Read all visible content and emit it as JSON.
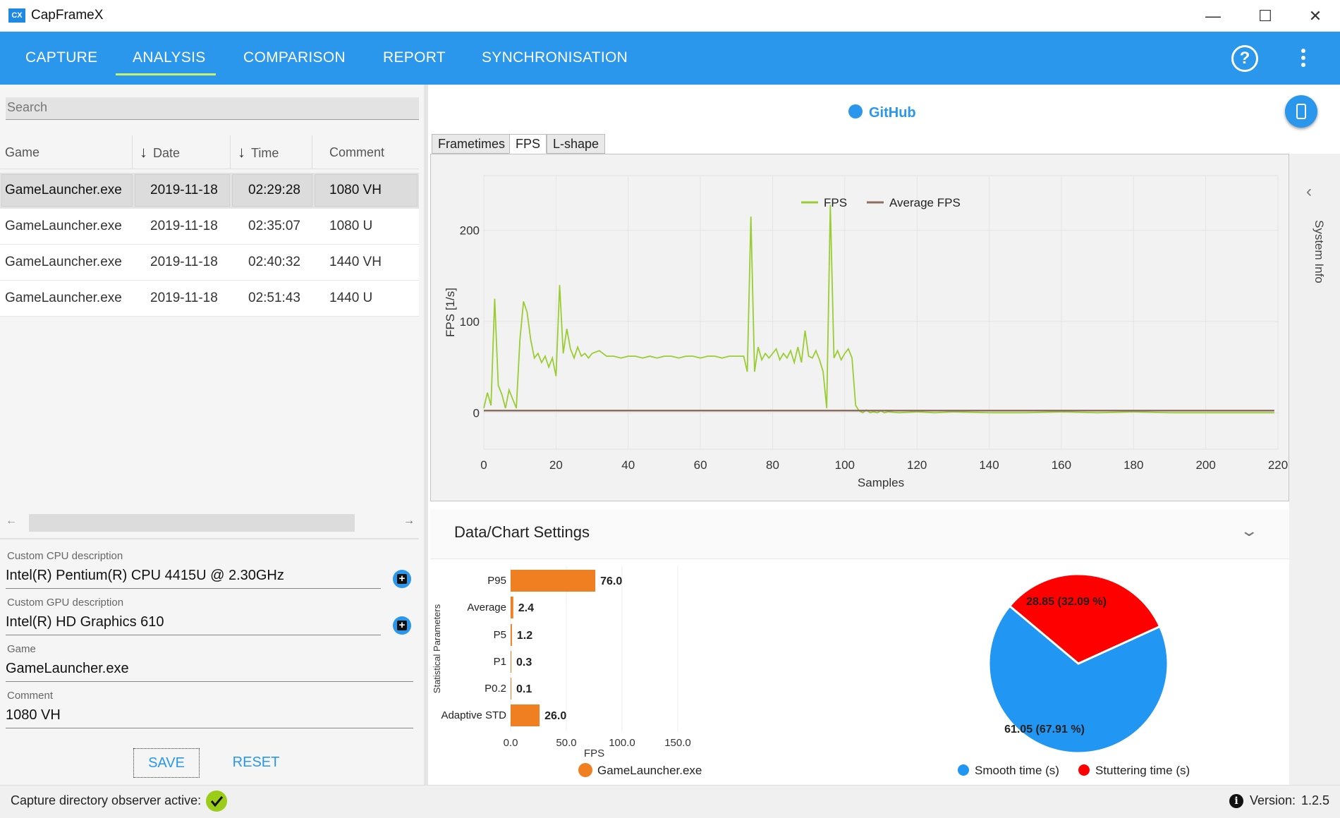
{
  "window": {
    "title": "CapFrameX",
    "logo_text": "CX"
  },
  "nav": {
    "tabs": [
      {
        "label": "CAPTURE"
      },
      {
        "label": "ANALYSIS"
      },
      {
        "label": "COMPARISON"
      },
      {
        "label": "REPORT"
      },
      {
        "label": "SYNCHRONISATION"
      }
    ],
    "active_tab": "ANALYSIS",
    "help_glyph": "?"
  },
  "search": {
    "placeholder": "Search"
  },
  "table": {
    "columns": [
      "Game",
      "Date",
      "Time",
      "Comment"
    ],
    "rows": [
      {
        "game": "GameLauncher.exe",
        "date": "2019-11-18",
        "time": "02:29:28",
        "comment": "1080 VH"
      },
      {
        "game": "GameLauncher.exe",
        "date": "2019-11-18",
        "time": "02:35:07",
        "comment": "1080 U"
      },
      {
        "game": "GameLauncher.exe",
        "date": "2019-11-18",
        "time": "02:40:32",
        "comment": "1440 VH"
      },
      {
        "game": "GameLauncher.exe",
        "date": "2019-11-18",
        "time": "02:51:43",
        "comment": "1440 U"
      }
    ],
    "selected_row": 0
  },
  "fields": {
    "cpu_label": "Custom CPU description",
    "cpu_value": "Intel(R) Pentium(R) CPU 4415U @ 2.30GHz",
    "gpu_label": "Custom GPU description",
    "gpu_value": "Intel(R) HD Graphics 610",
    "game_label": "Game",
    "game_value": "GameLauncher.exe",
    "comment_label": "Comment",
    "comment_value": "1080 VH"
  },
  "buttons": {
    "save": "SAVE",
    "reset": "RESET"
  },
  "github": {
    "label": "GitHub"
  },
  "chart_tabs": [
    "Frametimes",
    "FPS",
    "L-shape"
  ],
  "active_chart_tab": "FPS",
  "system_info": {
    "label": "System Info"
  },
  "settings": {
    "title": "Data/Chart Settings"
  },
  "status": {
    "observer_text": "Capture directory observer active:",
    "version_label": "Version:",
    "version_value": "1.2.5"
  },
  "colors": {
    "accent": "#2a96ec",
    "fps_line": "#9acd32",
    "avg_line": "#8d6e63",
    "bar": "#f07f22",
    "smooth": "#2196f3",
    "stutter": "#ff0000",
    "check": "#9ccc1a"
  },
  "chart_data": [
    {
      "type": "line",
      "xlabel": "Samples",
      "ylabel": "FPS [1/s]",
      "xlim": [
        0,
        220
      ],
      "ylim": [
        -40,
        260
      ],
      "xticks": [
        0,
        20,
        40,
        60,
        80,
        100,
        120,
        140,
        160,
        180,
        200,
        220
      ],
      "yticks": [
        0,
        100,
        200
      ],
      "legend": "top-center",
      "series": [
        {
          "name": "FPS",
          "x": [
            0,
            1,
            2,
            3,
            4,
            5,
            6,
            7,
            8,
            9,
            10,
            11,
            12,
            13,
            14,
            15,
            16,
            17,
            18,
            19,
            20,
            21,
            22,
            23,
            24,
            25,
            26,
            27,
            28,
            29,
            30,
            32,
            34,
            36,
            38,
            40,
            42,
            44,
            46,
            48,
            50,
            52,
            54,
            56,
            58,
            60,
            62,
            64,
            66,
            68,
            70,
            72,
            73,
            74,
            75,
            76,
            77,
            78,
            79,
            80,
            81,
            82,
            83,
            84,
            85,
            86,
            87,
            88,
            89,
            90,
            91,
            92,
            93,
            94,
            95,
            96,
            97,
            98,
            99,
            100,
            101,
            102,
            103,
            104,
            105,
            106,
            107,
            108,
            109,
            110,
            111,
            112,
            115,
            120,
            125,
            130,
            140,
            150,
            160,
            170,
            180,
            190,
            200,
            210,
            219
          ],
          "y": [
            5,
            22,
            8,
            125,
            30,
            20,
            5,
            25,
            15,
            5,
            80,
            122,
            110,
            80,
            60,
            65,
            55,
            62,
            50,
            60,
            40,
            140,
            65,
            92,
            70,
            60,
            72,
            62,
            65,
            60,
            65,
            68,
            62,
            62,
            60,
            62,
            62,
            60,
            62,
            60,
            62,
            62,
            60,
            62,
            62,
            60,
            62,
            62,
            60,
            62,
            62,
            62,
            45,
            215,
            45,
            72,
            58,
            65,
            60,
            65,
            70,
            58,
            65,
            60,
            68,
            55,
            72,
            55,
            90,
            62,
            60,
            68,
            58,
            45,
            5,
            228,
            60,
            68,
            58,
            65,
            70,
            60,
            8,
            2,
            0,
            3,
            0,
            1,
            0,
            2,
            0,
            1,
            0,
            1,
            0,
            1,
            0,
            0,
            1,
            0,
            1,
            0,
            0,
            0,
            0
          ]
        },
        {
          "name": "Average FPS",
          "x": [
            0,
            219
          ],
          "y": [
            2.4,
            2.4
          ]
        }
      ]
    },
    {
      "type": "bar",
      "orientation": "horizontal",
      "xlabel": "FPS",
      "ylabel": "Statistical Parameters",
      "xlim": [
        0,
        175
      ],
      "xticks": [
        0.0,
        50.0,
        100.0,
        150.0
      ],
      "categories": [
        "P95",
        "Average",
        "P5",
        "P1",
        "P0.2",
        "Adaptive STD"
      ],
      "series": [
        {
          "name": "GameLauncher.exe",
          "values": [
            76.0,
            2.4,
            1.2,
            0.3,
            0.1,
            26.0
          ]
        }
      ]
    },
    {
      "type": "pie",
      "slices": [
        {
          "name": "Smooth time (s)",
          "value": 61.05,
          "label": "61.05 (67.91 %)"
        },
        {
          "name": "Stuttering time (s)",
          "value": 28.85,
          "label": "28.85 (32.09 %)"
        }
      ]
    }
  ]
}
